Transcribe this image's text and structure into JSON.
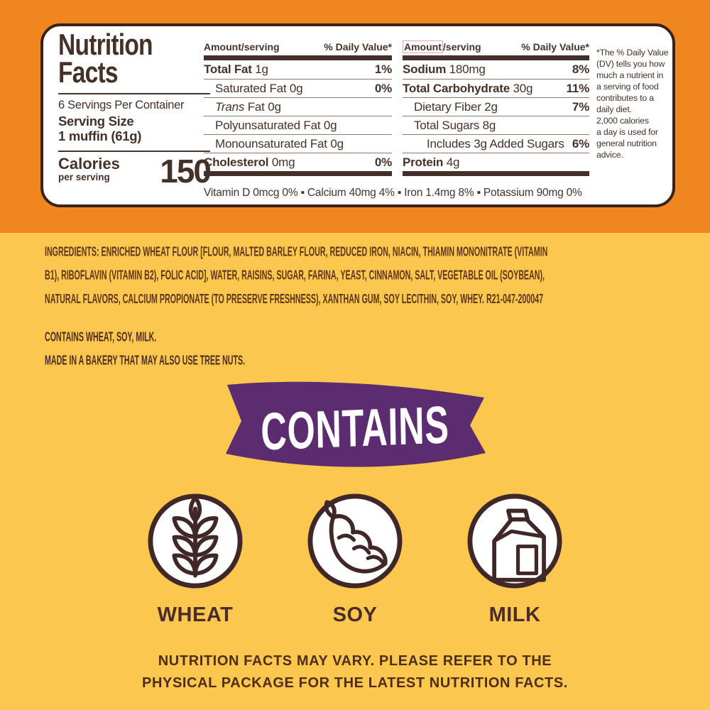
{
  "colors": {
    "orange_background": "#F0861F",
    "yellow_background": "#FBC74E",
    "panel_text_brown": "#463129",
    "panel_border_brown": "#38221A",
    "ingredients_brown": "#5F3517",
    "banner_purple": "#5B2D70",
    "icon_stroke_brown": "#402829",
    "highlight_pink": "#F79BC3"
  },
  "panel": {
    "title": "Nutrition\nFacts",
    "servings_per_container": "6 Servings Per Container",
    "serving_size": "Serving Size\n1 muffin (61g)",
    "calories_label": "Calories",
    "calories_sublabel": "per serving",
    "calories_value": "150",
    "columns": [
      {
        "header_amount": "Amount/serving",
        "header_dv": "% Daily Value*",
        "rows": [
          {
            "name": "Total Fat",
            "bold": true,
            "indent": 0,
            "amount": "1g",
            "dv": "1%"
          },
          {
            "name": "Saturated Fat",
            "bold": false,
            "indent": 1,
            "amount": "0g",
            "dv": "0%"
          },
          {
            "italic": "Trans",
            "name": " Fat",
            "bold": false,
            "indent": 1,
            "amount": "0g",
            "dv": ""
          },
          {
            "name": "Polyunsaturated Fat",
            "bold": false,
            "indent": 1,
            "amount": "0g",
            "dv": ""
          },
          {
            "name": "Monounsaturated Fat",
            "bold": false,
            "indent": 1,
            "amount": "0g",
            "dv": ""
          },
          {
            "name": "Cholesterol",
            "bold": true,
            "indent": 0,
            "amount": "0mg",
            "dv": "0%"
          }
        ]
      },
      {
        "header_amount_hl": "Amount",
        "header_amount_rest": "/serving",
        "header_dv": "% Daily Value*",
        "rows": [
          {
            "name": "Sodium",
            "bold": true,
            "indent": 0,
            "amount": "180mg",
            "dv": "8%"
          },
          {
            "name": "Total Carbohydrate",
            "bold": true,
            "indent": 0,
            "amount": "30g",
            "dv": "11%"
          },
          {
            "name": "Dietary Fiber",
            "bold": false,
            "indent": 1,
            "amount": "2g",
            "dv": "7%"
          },
          {
            "name": "Total Sugars",
            "bold": false,
            "indent": 1,
            "amount": "8g",
            "dv": ""
          },
          {
            "name": "Includes 3g Added Sugars",
            "bold": false,
            "indent": 2,
            "amount": "",
            "dv": "6%"
          },
          {
            "name": "Protein",
            "bold": true,
            "indent": 0,
            "amount": "4g",
            "dv": ""
          }
        ]
      }
    ],
    "footnote": "*The % Daily Value\n(DV) tells you how\nmuch a nutrient in\na serving of food\ncontributes to a\ndaily diet.\n2,000 calories\na day is used for\ngeneral nutrition\nadvice.",
    "micronutrients": "Vitamin D 0mcg 0% ▪ Calcium 40mg 4% ▪ Iron 1.4mg 8% ▪ Potassium 90mg 0%"
  },
  "ingredients": "INGREDIENTS: ENRICHED WHEAT FLOUR [FLOUR, MALTED BARLEY FLOUR, REDUCED IRON, NIACIN, THIAMIN MONONITRATE (VITAMIN\nB1), RIBOFLAVIN (VITAMIN B2), FOLIC ACID], WATER, RAISINS, SUGAR, FARINA, YEAST, CINNAMON, SALT, VEGETABLE OIL (SOYBEAN),\nNATURAL FLAVORS, CALCIUM PROPIONATE (TO PRESERVE FRESHNESS), XANTHAN GUM, SOY LECITHIN, SOY, WHEY. R21-047-200047",
  "allergen_statement": "CONTAINS WHEAT, SOY, MILK.\nMADE IN A BAKERY THAT MAY ALSO USE TREE NUTS.",
  "banner": {
    "label": "CONTAINS"
  },
  "allergen_icons": [
    {
      "icon": "wheat-icon",
      "label": "WHEAT"
    },
    {
      "icon": "soybean-icon",
      "label": "SOY"
    },
    {
      "icon": "milk-carton-icon",
      "label": "MILK"
    }
  ],
  "disclaimer": "NUTRITION FACTS MAY VARY. PLEASE REFER TO THE\nPHYSICAL PACKAGE FOR THE LATEST NUTRITION FACTS."
}
